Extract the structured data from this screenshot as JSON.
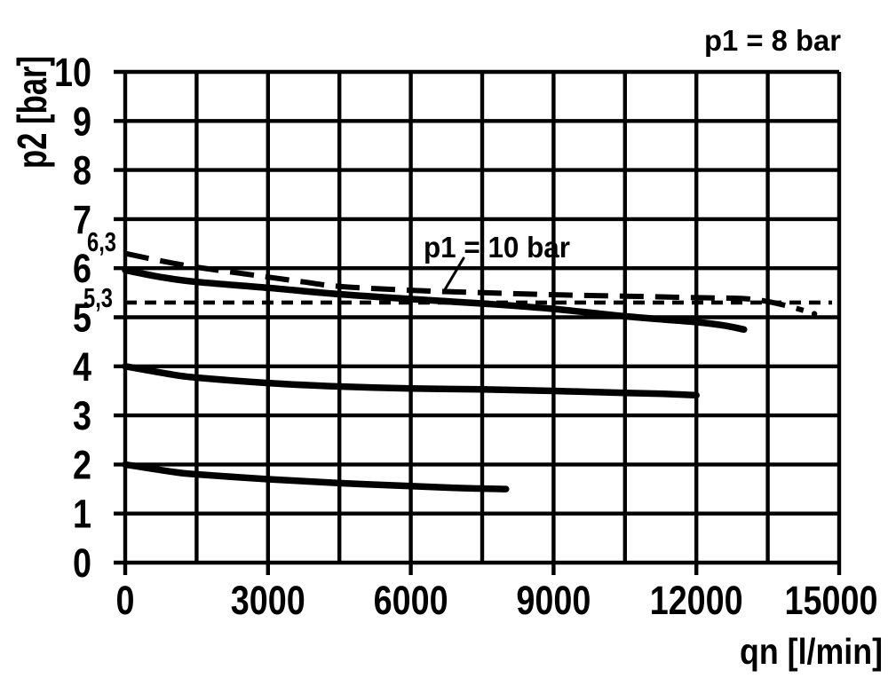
{
  "colors": {
    "ink": "#000000",
    "background": "#ffffff"
  },
  "chart_data": {
    "type": "line",
    "title": "p1 = 8 bar",
    "xlabel": "qn [l/min]",
    "ylabel": "p2 [bar]",
    "xlim": [
      0,
      15000
    ],
    "ylim": [
      0,
      10
    ],
    "x_ticks": [
      0,
      3000,
      6000,
      9000,
      12000,
      15000
    ],
    "x_grid_step": 1500,
    "y_ticks": [
      0,
      1,
      2,
      3,
      4,
      5,
      6,
      7,
      8,
      9,
      10
    ],
    "grid": true,
    "legend": "none",
    "annotations": {
      "curve_label": "p1 = 10 bar",
      "setpoint_high": "6,3",
      "setpoint_mid": "5,3"
    },
    "series": [
      {
        "key": "p1-10bar-set-6-3",
        "name": "p1 = 10 bar (outlet setting 6,3 bar)",
        "style": "long-dash",
        "points": [
          [
            0,
            6.3
          ],
          [
            700,
            6.16
          ],
          [
            1500,
            6.02
          ],
          [
            3000,
            5.82
          ],
          [
            3750,
            5.72
          ],
          [
            4500,
            5.63
          ],
          [
            6000,
            5.55
          ],
          [
            7500,
            5.5
          ],
          [
            9000,
            5.46
          ],
          [
            10500,
            5.43
          ],
          [
            12000,
            5.4
          ],
          [
            13000,
            5.38
          ],
          [
            13500,
            5.32
          ],
          [
            14000,
            5.21
          ],
          [
            14250,
            5.14
          ]
        ],
        "end_dot": [
          14480,
          5.07
        ]
      },
      {
        "key": "p1-8bar-set-6",
        "name": "p1 = 8 bar (outlet setting 6 bar)",
        "style": "solid",
        "points": [
          [
            0,
            5.96
          ],
          [
            800,
            5.81
          ],
          [
            1500,
            5.72
          ],
          [
            3000,
            5.6
          ],
          [
            4500,
            5.47
          ],
          [
            6000,
            5.37
          ],
          [
            7500,
            5.28
          ],
          [
            9000,
            5.17
          ],
          [
            10500,
            5.02
          ],
          [
            12000,
            4.9
          ],
          [
            12600,
            4.83
          ],
          [
            13000,
            4.75
          ]
        ]
      },
      {
        "key": "reference-5-3",
        "name": "5,3 bar reference line",
        "style": "short-dash",
        "points": [
          [
            0,
            5.3
          ],
          [
            14850,
            5.3
          ]
        ]
      },
      {
        "key": "set-4",
        "name": "outlet setting 4 bar",
        "style": "solid",
        "points": [
          [
            0,
            4.0
          ],
          [
            1000,
            3.83
          ],
          [
            1500,
            3.77
          ],
          [
            3000,
            3.66
          ],
          [
            4500,
            3.59
          ],
          [
            6000,
            3.55
          ],
          [
            7500,
            3.53
          ],
          [
            9000,
            3.5
          ],
          [
            10500,
            3.46
          ],
          [
            11300,
            3.44
          ],
          [
            12000,
            3.41
          ]
        ]
      },
      {
        "key": "set-2",
        "name": "outlet setting 2 bar",
        "style": "solid",
        "points": [
          [
            0,
            2.0
          ],
          [
            1000,
            1.85
          ],
          [
            1500,
            1.8
          ],
          [
            3000,
            1.7
          ],
          [
            4500,
            1.62
          ],
          [
            6000,
            1.56
          ],
          [
            7000,
            1.52
          ],
          [
            8000,
            1.5
          ]
        ]
      }
    ]
  }
}
